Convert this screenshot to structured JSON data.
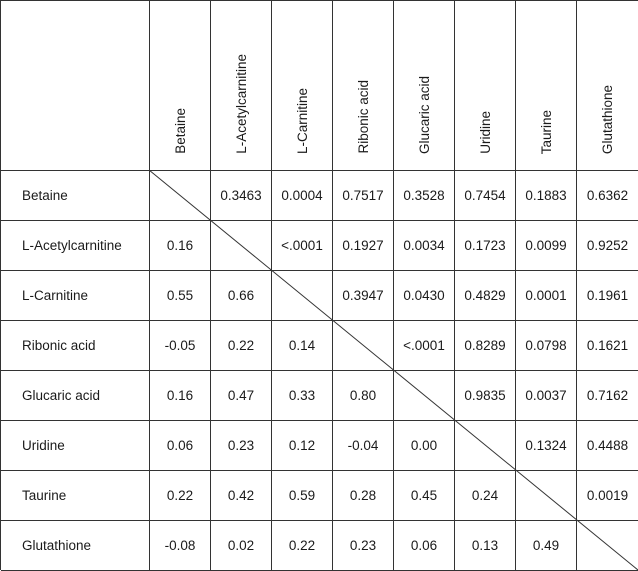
{
  "columns": [
    "Betaine",
    "L-Acetylcarnitine",
    "L-Carnitine",
    "Ribonic acid",
    "Glucaric acid",
    "Uridine",
    "Taurine",
    "Glutathione"
  ],
  "rows": [
    {
      "label": "Betaine",
      "cells": [
        "",
        "0.3463",
        "0.0004",
        "0.7517",
        "0.3528",
        "0.7454",
        "0.1883",
        "0.6362"
      ]
    },
    {
      "label": "L-Acetylcarnitine",
      "cells": [
        "0.16",
        "",
        "<.0001",
        "0.1927",
        "0.0034",
        "0.1723",
        "0.0099",
        "0.9252"
      ]
    },
    {
      "label": "L-Carnitine",
      "cells": [
        "0.55",
        "0.66",
        "",
        "0.3947",
        "0.0430",
        "0.4829",
        "0.0001",
        "0.1961"
      ]
    },
    {
      "label": "Ribonic acid",
      "cells": [
        "-0.05",
        "0.22",
        "0.14",
        "",
        "<.0001",
        "0.8289",
        "0.0798",
        "0.1621"
      ]
    },
    {
      "label": "Glucaric acid",
      "cells": [
        "0.16",
        "0.47",
        "0.33",
        "0.80",
        "",
        "0.9835",
        "0.0037",
        "0.7162"
      ]
    },
    {
      "label": "Uridine",
      "cells": [
        "0.06",
        "0.23",
        "0.12",
        "-0.04",
        "0.00",
        "",
        "0.1324",
        "0.4488"
      ]
    },
    {
      "label": "Taurine",
      "cells": [
        "0.22",
        "0.42",
        "0.59",
        "0.28",
        "0.45",
        "0.24",
        "",
        "0.0019"
      ]
    },
    {
      "label": "Glutathione",
      "cells": [
        "-0.08",
        "0.02",
        "0.22",
        "0.23",
        "0.06",
        "0.13",
        "0.49",
        ""
      ]
    }
  ]
}
